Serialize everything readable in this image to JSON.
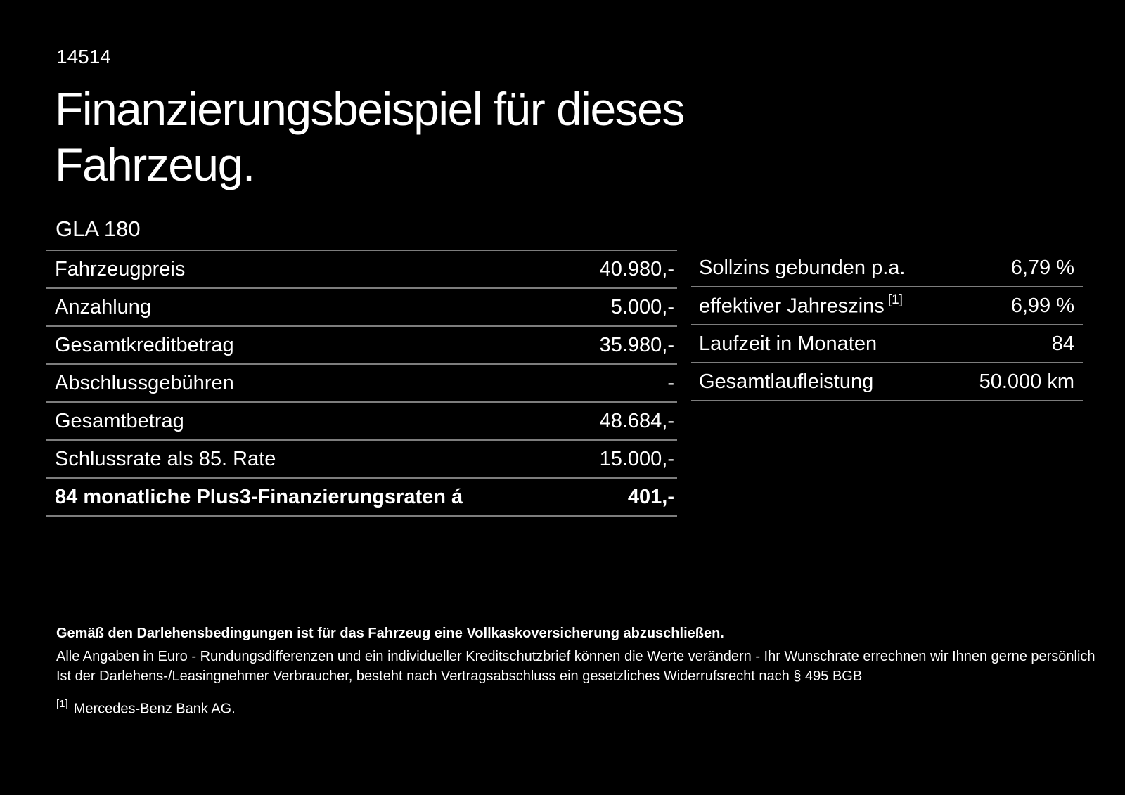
{
  "page": {
    "background": "#000000",
    "text_color": "#ffffff",
    "divider_color": "#7d7d7d"
  },
  "header": {
    "ref_number": "14514",
    "title_line1": "Finanzierungsbeispiel für dieses",
    "title_line2": "Fahrzeug.",
    "model": "GLA 180"
  },
  "finance_table": {
    "rows": [
      {
        "label": "Fahrzeugpreis",
        "value": "40.980,-",
        "bold": false
      },
      {
        "label": "Anzahlung",
        "value": "5.000,-",
        "bold": false
      },
      {
        "label": "Gesamtkreditbetrag",
        "value": "35.980,-",
        "bold": false
      },
      {
        "label": "Abschlussgebühren",
        "value": "-",
        "bold": false
      },
      {
        "label": "Gesamtbetrag",
        "value": "48.684,-",
        "bold": false
      },
      {
        "label": "Schlussrate als 85. Rate",
        "value": "15.000,-",
        "bold": false
      },
      {
        "label": "84 monatliche Plus3-Finanzierungsraten á",
        "value": "401,-",
        "bold": true
      }
    ]
  },
  "conditions_table": {
    "rows": [
      {
        "label": "Sollzins gebunden p.a.",
        "sup": "",
        "value": "6,79 %",
        "bold": false
      },
      {
        "label": "effektiver Jahreszins",
        "sup": "[1]",
        "value": "6,99 %",
        "bold": false
      },
      {
        "label": "Laufzeit in Monaten",
        "sup": "",
        "value": "84",
        "bold": false
      },
      {
        "label": "Gesamtlaufleistung",
        "sup": "",
        "value": "50.000 km",
        "bold": false
      }
    ]
  },
  "footer": {
    "bold_note": "Gemäß den Darlehensbedingungen ist für das Fahrzeug eine Vollkaskoversicherung abzuschließen.",
    "note_line1": "Alle Angaben in Euro - Rundungsdifferenzen und ein individueller Kreditschutzbrief können die Werte verändern - Ihr Wunschrate errechnen wir Ihnen gerne persönlich",
    "note_line2": "Ist der Darlehens-/Leasingnehmer Verbraucher, besteht nach Vertragsabschluss ein gesetzliches Widerrufsrecht nach § 495 BGB",
    "footnote_marker": "[1]",
    "footnote_text": "Mercedes-Benz Bank AG."
  }
}
